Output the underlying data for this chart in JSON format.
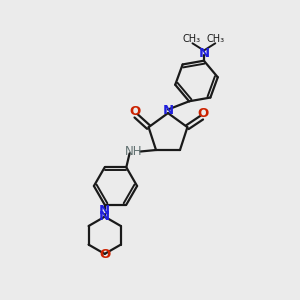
{
  "bg_color": "#ebebeb",
  "bond_color": "#1a1a1a",
  "N_color": "#2020dd",
  "O_color": "#cc2200",
  "NH_color": "#607070",
  "fig_size": [
    3.0,
    3.0
  ],
  "dpi": 100,
  "xlim": [
    0,
    10
  ],
  "ylim": [
    0,
    10
  ],
  "lw": 1.6,
  "lw_dbl": 1.4
}
